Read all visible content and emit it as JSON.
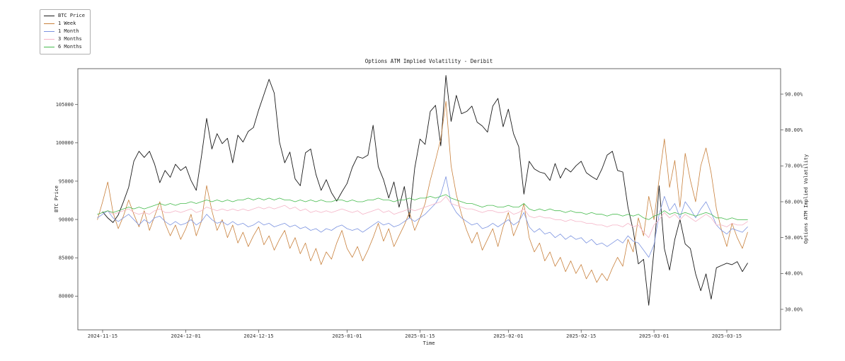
{
  "title": "Options ATM Implied Volatility - Deribit",
  "axes": {
    "x_label": "Time",
    "y_left_label": "BTC Price",
    "y_right_label": "Options ATM Implied Volatility"
  },
  "chart_data": {
    "type": "line",
    "title": "Options ATM Implied Volatility - Deribit",
    "xlabel": "Time",
    "ylabel_left": "BTC Price",
    "ylabel_right": "Options ATM Implied Volatility",
    "grid": false,
    "legend_position": "upper-left-outside",
    "x_start_date": "2024-11-14",
    "x_unit": "day",
    "x_ticks": [
      "2024-11-15",
      "2024-12-01",
      "2024-12-15",
      "2025-01-01",
      "2025-01-15",
      "2025-02-01",
      "2025-02-15",
      "2025-03-01",
      "2025-03-15"
    ],
    "left_axis_ticks": [
      80000,
      85000,
      90000,
      95000,
      100000,
      105000
    ],
    "right_axis_ticks": [
      30,
      40,
      50,
      60,
      70,
      80,
      90
    ],
    "ylim_left": [
      75900,
      109700
    ],
    "ylim_right": [
      24.9,
      97.1
    ],
    "series": [
      {
        "name": "BTC Price",
        "axis": "left",
        "color": "#1a1a1a",
        "values": [
          null,
          91000,
          90200,
          89600,
          90600,
          92300,
          94200,
          97600,
          98900,
          98100,
          98900,
          97200,
          94800,
          96400,
          95500,
          97200,
          96400,
          96900,
          95100,
          93800,
          98200,
          103200,
          99200,
          101200,
          99900,
          100600,
          97400,
          101000,
          100100,
          101500,
          102000,
          104300,
          106300,
          108300,
          106500,
          100100,
          97400,
          98800,
          95300,
          94400,
          98700,
          99200,
          95900,
          93800,
          95200,
          93500,
          92400,
          93600,
          94700,
          96800,
          98200,
          98000,
          98400,
          102300,
          96900,
          95200,
          92800,
          94900,
          91600,
          94300,
          90200,
          96700,
          100500,
          99800,
          104100,
          104900,
          99600,
          108800,
          102800,
          106200,
          103800,
          104100,
          104800,
          102700,
          102200,
          101400,
          104800,
          105800,
          102100,
          104400,
          101200,
          99500,
          93300,
          97600,
          96600,
          96200,
          96000,
          95100,
          97300,
          95400,
          96700,
          96200,
          97000,
          97600,
          96100,
          95600,
          95200,
          96600,
          98400,
          98900,
          96400,
          96200,
          91600,
          88600,
          84200,
          84800,
          78800,
          86000,
          94400,
          86200,
          83400,
          87400,
          90000,
          86800,
          86200,
          82900,
          80700,
          82900,
          79600,
          83700,
          84000,
          84300,
          84100,
          84500,
          83200,
          84300
        ]
      },
      {
        "name": "1 Week",
        "axis": "right",
        "color": "#c8803c",
        "values": [
          55,
          60,
          65.5,
          57,
          52.5,
          56,
          60.5,
          56.5,
          53,
          57.5,
          52,
          56,
          60,
          54,
          50.5,
          53.5,
          49.5,
          52.5,
          56.5,
          50.5,
          54.5,
          64.5,
          57.5,
          52,
          55,
          50,
          53.5,
          48.5,
          51.5,
          47.5,
          50.5,
          53,
          48,
          50.5,
          46.5,
          49.5,
          52,
          47,
          50,
          45.5,
          48.5,
          43.5,
          47,
          42.5,
          46,
          44,
          48.5,
          52,
          47,
          44.5,
          47.5,
          43.5,
          46.5,
          50,
          54,
          49,
          52.5,
          47.5,
          50.5,
          53.5,
          57,
          52,
          55.5,
          59.5,
          66,
          71.5,
          77.5,
          88,
          70,
          62,
          56.5,
          52,
          48.5,
          51.5,
          46.5,
          49.5,
          52.5,
          47.5,
          53,
          57,
          50.5,
          54,
          59.5,
          50,
          46,
          48.5,
          43.5,
          46,
          42,
          44.5,
          40.5,
          43.5,
          40,
          42.5,
          38.5,
          41,
          37.5,
          40,
          38,
          41.5,
          44.5,
          42,
          49.5,
          46,
          55.5,
          50.5,
          61.5,
          55,
          66.5,
          77.5,
          64,
          71.5,
          58.5,
          73.5,
          66,
          60,
          70,
          75,
          68,
          58,
          52,
          47.5,
          54,
          50,
          47,
          51.5
        ]
      },
      {
        "name": "1 Month",
        "axis": "right",
        "color": "#7b93e0",
        "values": [
          55.5,
          56.5,
          57.5,
          55.5,
          54.5,
          55.5,
          56.5,
          55,
          53.5,
          55,
          54,
          55.5,
          56,
          54.5,
          53.5,
          54.5,
          53.5,
          54,
          55,
          53.5,
          54.5,
          56.5,
          55,
          54,
          54.5,
          53.5,
          54.5,
          53.5,
          54,
          53,
          53.5,
          54.5,
          53.5,
          54,
          53,
          53.5,
          54,
          53,
          53.5,
          52.5,
          53,
          52,
          52.5,
          51.5,
          52.5,
          52,
          53,
          53.5,
          52.5,
          52,
          52.5,
          51.5,
          52.5,
          53.5,
          54.5,
          53.5,
          54,
          53,
          53.5,
          54.5,
          55.5,
          54.5,
          55.5,
          56.5,
          58,
          59.5,
          62,
          67,
          59.5,
          57,
          55.5,
          54.5,
          53.5,
          54,
          52.5,
          53,
          54,
          53,
          54,
          55,
          53.5,
          54.5,
          57,
          53,
          51.5,
          52.5,
          51,
          51.5,
          50,
          51,
          49.5,
          50.5,
          49.5,
          50,
          48.5,
          49.5,
          48,
          48.5,
          47.5,
          48.5,
          49.5,
          48.5,
          50.5,
          49,
          48.5,
          46.5,
          44.5,
          48,
          56.5,
          61.5,
          57.5,
          59.5,
          55.5,
          60,
          58,
          55.5,
          58,
          60,
          57,
          53.5,
          52,
          51,
          52.5,
          52,
          51.5,
          53
        ]
      },
      {
        "name": "3 Months",
        "axis": "right",
        "color": "#f4b3c6",
        "values": [
          56.5,
          57,
          57.5,
          56.5,
          57,
          57.5,
          58,
          57,
          56.5,
          57,
          56.5,
          57.5,
          58,
          57,
          57,
          57.5,
          57,
          57.5,
          58,
          57,
          57.5,
          58.5,
          58,
          57.5,
          58,
          57.5,
          58,
          57.5,
          58,
          57.5,
          58,
          58.5,
          58,
          58.5,
          58,
          58.5,
          59,
          58,
          58.5,
          57.5,
          58,
          57,
          57.5,
          57,
          57.5,
          57,
          57.5,
          58,
          57.5,
          57,
          57.5,
          56.5,
          57,
          57.5,
          58,
          57,
          57.5,
          56.5,
          57,
          57.5,
          58,
          57.5,
          58,
          58.5,
          59,
          59.5,
          60,
          61.5,
          59.5,
          59,
          58.5,
          58,
          58,
          57.5,
          57,
          57.5,
          57.5,
          57,
          57,
          57.5,
          56.5,
          57,
          58,
          56,
          55.5,
          56,
          55.5,
          55.5,
          55,
          55,
          54.5,
          55,
          54.5,
          54.5,
          54,
          54,
          53.5,
          53.5,
          53,
          53.5,
          53.5,
          53,
          54,
          53,
          53.5,
          51.5,
          50,
          53.5,
          55,
          57,
          55.5,
          56.5,
          55,
          56.5,
          55.5,
          54.5,
          55.5,
          56.5,
          55.5,
          53.5,
          53.5,
          53,
          54,
          53.5,
          53.5,
          54.5
        ]
      },
      {
        "name": "6 Months",
        "axis": "right",
        "color": "#46bb4e",
        "values": [
          56.5,
          57,
          57.5,
          57,
          57.5,
          58,
          58.5,
          58,
          58.5,
          58,
          58.5,
          59,
          59.5,
          59,
          59.5,
          59,
          59.5,
          59.5,
          60,
          59.5,
          60,
          60.5,
          60,
          60.5,
          60,
          60.5,
          60,
          60.5,
          60.5,
          61,
          60.5,
          61,
          60.5,
          61,
          60.5,
          61,
          60.5,
          60.5,
          60,
          60.5,
          60,
          60.5,
          60,
          60.5,
          60,
          60,
          60.5,
          60.5,
          60,
          60.5,
          60,
          60,
          60.5,
          60.5,
          61,
          60.5,
          60.5,
          60,
          60.5,
          60.5,
          61,
          60.5,
          61,
          61,
          61.5,
          61,
          61.5,
          62,
          61,
          60.5,
          60,
          59.5,
          59.5,
          59,
          58.5,
          59,
          59,
          58.5,
          58.5,
          59,
          58.5,
          58.5,
          59.5,
          58,
          57.5,
          58,
          57.5,
          58,
          57.5,
          57.5,
          57,
          57.5,
          57,
          57,
          56.5,
          57,
          56.5,
          56.5,
          56,
          56.5,
          56.5,
          56,
          56.5,
          56,
          56.5,
          55.5,
          55,
          56,
          56.5,
          57.5,
          56.5,
          57,
          56.5,
          57,
          56.5,
          56,
          56.5,
          57,
          56.5,
          55.5,
          55.5,
          55,
          55.5,
          55,
          55,
          55
        ]
      }
    ]
  }
}
